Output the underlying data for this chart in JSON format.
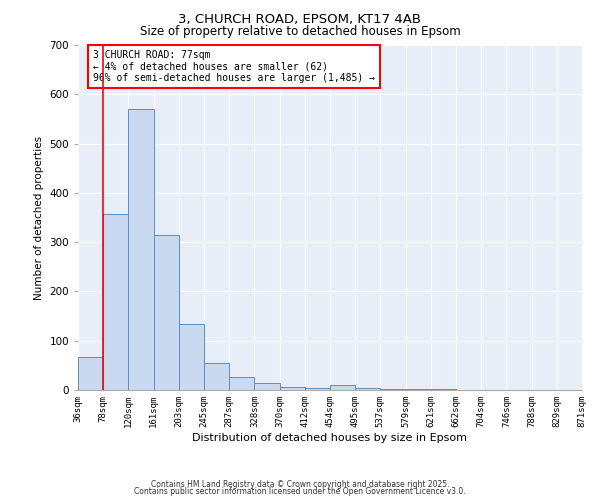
{
  "title_line1": "3, CHURCH ROAD, EPSOM, KT17 4AB",
  "title_line2": "Size of property relative to detached houses in Epsom",
  "xlabel": "Distribution of detached houses by size in Epsom",
  "ylabel": "Number of detached properties",
  "bin_labels": [
    "36sqm",
    "78sqm",
    "120sqm",
    "161sqm",
    "203sqm",
    "245sqm",
    "287sqm",
    "328sqm",
    "370sqm",
    "412sqm",
    "454sqm",
    "495sqm",
    "537sqm",
    "579sqm",
    "621sqm",
    "662sqm",
    "704sqm",
    "746sqm",
    "788sqm",
    "829sqm",
    "871sqm"
  ],
  "bar_heights": [
    67,
    358,
    570,
    315,
    133,
    55,
    27,
    15,
    7,
    5,
    10,
    5,
    2,
    2,
    2,
    1,
    1,
    1,
    0,
    0
  ],
  "bar_color": "#c9d9f0",
  "bar_edge_color": "#5a8fc4",
  "red_line_index": 1,
  "annotation_text": "3 CHURCH ROAD: 77sqm\n← 4% of detached houses are smaller (62)\n96% of semi-detached houses are larger (1,485) →",
  "annotation_box_color": "white",
  "annotation_box_edge_color": "red",
  "ylim": [
    0,
    700
  ],
  "yticks": [
    0,
    100,
    200,
    300,
    400,
    500,
    600,
    700
  ],
  "background_color": "#e8eef8",
  "grid_color": "white",
  "footer_line1": "Contains HM Land Registry data © Crown copyright and database right 2025.",
  "footer_line2": "Contains public sector information licensed under the Open Government Licence v3.0."
}
